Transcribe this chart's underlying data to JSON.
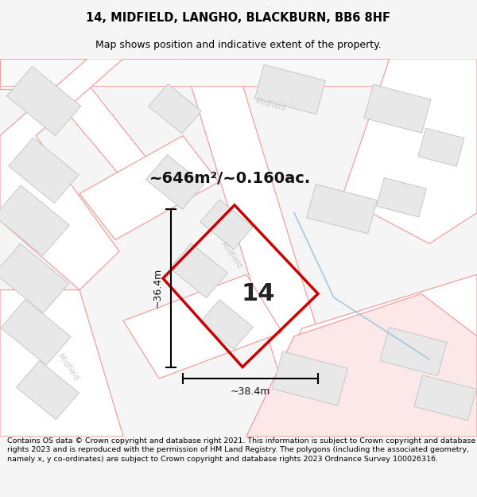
{
  "title": "14, MIDFIELD, LANGHO, BLACKBURN, BB6 8HF",
  "subtitle": "Map shows position and indicative extent of the property.",
  "area_text": "~646m²/~0.160ac.",
  "width_label": "~38.4m",
  "height_label": "~36.4m",
  "property_number": "14",
  "footer": "Contains OS data © Crown copyright and database right 2021. This information is subject to Crown copyright and database rights 2023 and is reproduced with the permission of HM Land Registry. The polygons (including the associated geometry, namely x, y co-ordinates) are subject to Crown copyright and database rights 2023 Ordnance Survey 100026316.",
  "bg_color": "#f5f5f5",
  "map_bg": "#ffffff",
  "road_color": "#f2a0a0",
  "building_fill": "#e8e8e8",
  "building_edge": "#c0c0c0",
  "property_color": "#cc0000",
  "street_label_color": "#c8c8c8",
  "dim_color": "#111111",
  "area_fontsize": 14,
  "num_fontsize": 22,
  "dim_fontsize": 9,
  "title_fontsize": 10.5,
  "subtitle_fontsize": 9,
  "footer_fontsize": 6.8
}
